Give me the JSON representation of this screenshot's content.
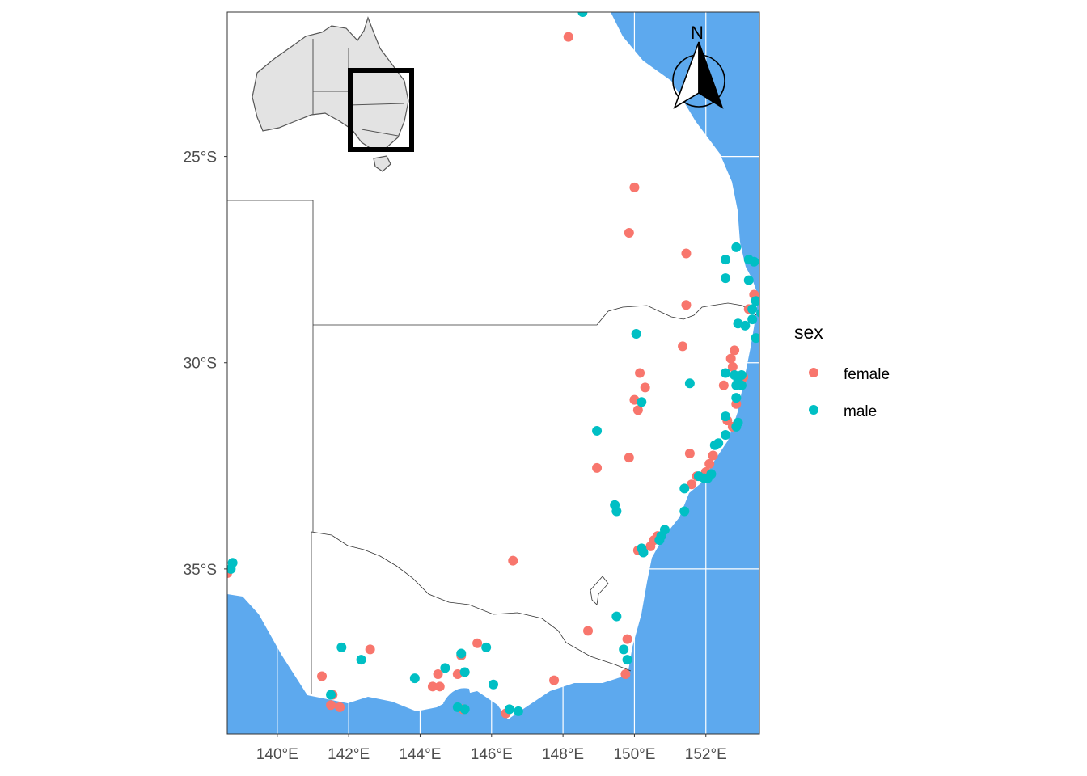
{
  "chart_data": {
    "type": "scatter",
    "projection": "longitude/latitude map of south-eastern Australia",
    "xlim": [
      138.6,
      153.5
    ],
    "ylim": [
      -39.0,
      -21.5
    ],
    "x_ticks": [
      {
        "value": 140,
        "label": "140°E"
      },
      {
        "value": 142,
        "label": "142°E"
      },
      {
        "value": 144,
        "label": "144°E"
      },
      {
        "value": 146,
        "label": "146°E"
      },
      {
        "value": 148,
        "label": "148°E"
      },
      {
        "value": 150,
        "label": "150°E"
      },
      {
        "value": 152,
        "label": "152°E"
      }
    ],
    "y_ticks": [
      {
        "value": -25,
        "label": "25°S"
      },
      {
        "value": -30,
        "label": "30°S"
      },
      {
        "value": -35,
        "label": "35°S"
      }
    ],
    "grid": true,
    "legend": {
      "title": "sex",
      "placement": "right",
      "entries": [
        {
          "label": "female",
          "color": "#F8766D"
        },
        {
          "label": "male",
          "color": "#00BFC4"
        }
      ]
    },
    "inset": "Australia outline with states, black rectangle marking the mapped extent",
    "north_arrow": {
      "label": "N"
    },
    "series": [
      {
        "name": "female",
        "color": "#F8766D",
        "points": [
          [
            148.15,
            -22.1
          ],
          [
            150.0,
            -25.75
          ],
          [
            149.85,
            -26.85
          ],
          [
            151.45,
            -27.35
          ],
          [
            151.45,
            -28.6
          ],
          [
            153.35,
            -28.35
          ],
          [
            153.2,
            -28.7
          ],
          [
            151.35,
            -29.6
          ],
          [
            152.8,
            -29.7
          ],
          [
            152.7,
            -29.9
          ],
          [
            150.15,
            -30.25
          ],
          [
            152.75,
            -30.1
          ],
          [
            150.3,
            -30.6
          ],
          [
            150.0,
            -30.9
          ],
          [
            150.1,
            -31.15
          ],
          [
            152.5,
            -30.55
          ],
          [
            153.05,
            -30.35
          ],
          [
            152.85,
            -31.0
          ],
          [
            152.6,
            -31.4
          ],
          [
            152.75,
            -31.55
          ],
          [
            151.55,
            -32.2
          ],
          [
            152.2,
            -32.25
          ],
          [
            149.85,
            -32.3
          ],
          [
            148.95,
            -32.55
          ],
          [
            152.1,
            -32.45
          ],
          [
            152.0,
            -32.65
          ],
          [
            151.75,
            -32.75
          ],
          [
            151.6,
            -32.95
          ],
          [
            150.1,
            -34.55
          ],
          [
            150.45,
            -34.45
          ],
          [
            150.55,
            -34.3
          ],
          [
            150.65,
            -34.2
          ],
          [
            146.6,
            -34.8
          ],
          [
            148.7,
            -36.5
          ],
          [
            149.8,
            -36.7
          ],
          [
            149.75,
            -37.55
          ],
          [
            141.25,
            -37.6
          ],
          [
            141.55,
            -38.05
          ],
          [
            141.5,
            -38.3
          ],
          [
            141.75,
            -38.35
          ],
          [
            142.6,
            -36.95
          ],
          [
            144.5,
            -37.55
          ],
          [
            144.35,
            -37.85
          ],
          [
            144.55,
            -37.85
          ],
          [
            145.05,
            -37.55
          ],
          [
            145.15,
            -37.1
          ],
          [
            145.6,
            -36.8
          ],
          [
            147.75,
            -37.7
          ],
          [
            146.4,
            -38.5
          ],
          [
            145.2,
            -38.4
          ],
          [
            138.6,
            -35.1
          ]
        ]
      },
      {
        "name": "male",
        "color": "#00BFC4",
        "points": [
          [
            148.55,
            -21.5
          ],
          [
            152.85,
            -27.2
          ],
          [
            152.55,
            -27.5
          ],
          [
            153.2,
            -27.5
          ],
          [
            153.35,
            -27.55
          ],
          [
            152.55,
            -27.95
          ],
          [
            153.2,
            -28.0
          ],
          [
            153.4,
            -28.5
          ],
          [
            153.3,
            -28.7
          ],
          [
            153.55,
            -28.8
          ],
          [
            153.3,
            -28.95
          ],
          [
            153.1,
            -29.1
          ],
          [
            152.9,
            -29.05
          ],
          [
            153.4,
            -29.4
          ],
          [
            150.05,
            -29.3
          ],
          [
            151.55,
            -30.5
          ],
          [
            152.55,
            -30.25
          ],
          [
            152.8,
            -30.3
          ],
          [
            153.0,
            -30.3
          ],
          [
            152.9,
            -30.45
          ],
          [
            152.85,
            -30.55
          ],
          [
            153.0,
            -30.55
          ],
          [
            152.85,
            -30.85
          ],
          [
            150.2,
            -30.95
          ],
          [
            152.55,
            -31.3
          ],
          [
            152.9,
            -31.45
          ],
          [
            152.85,
            -31.55
          ],
          [
            148.95,
            -31.65
          ],
          [
            152.55,
            -31.75
          ],
          [
            152.35,
            -31.95
          ],
          [
            152.25,
            -32.0
          ],
          [
            151.8,
            -32.75
          ],
          [
            151.95,
            -32.8
          ],
          [
            152.05,
            -32.8
          ],
          [
            152.15,
            -32.7
          ],
          [
            151.4,
            -33.05
          ],
          [
            151.4,
            -33.6
          ],
          [
            149.45,
            -33.45
          ],
          [
            149.5,
            -33.6
          ],
          [
            150.2,
            -34.5
          ],
          [
            150.25,
            -34.6
          ],
          [
            150.75,
            -34.2
          ],
          [
            150.85,
            -34.05
          ],
          [
            150.7,
            -34.3
          ],
          [
            138.75,
            -34.85
          ],
          [
            138.7,
            -35.0
          ],
          [
            149.5,
            -36.15
          ],
          [
            149.7,
            -36.95
          ],
          [
            149.8,
            -37.2
          ],
          [
            141.8,
            -36.9
          ],
          [
            142.35,
            -37.2
          ],
          [
            141.5,
            -38.05
          ],
          [
            143.85,
            -37.65
          ],
          [
            144.7,
            -37.4
          ],
          [
            145.15,
            -37.05
          ],
          [
            145.25,
            -37.5
          ],
          [
            145.85,
            -36.9
          ],
          [
            146.05,
            -37.8
          ],
          [
            145.05,
            -38.35
          ],
          [
            145.25,
            -38.4
          ],
          [
            146.5,
            -38.4
          ],
          [
            146.75,
            -38.45
          ]
        ]
      }
    ]
  }
}
